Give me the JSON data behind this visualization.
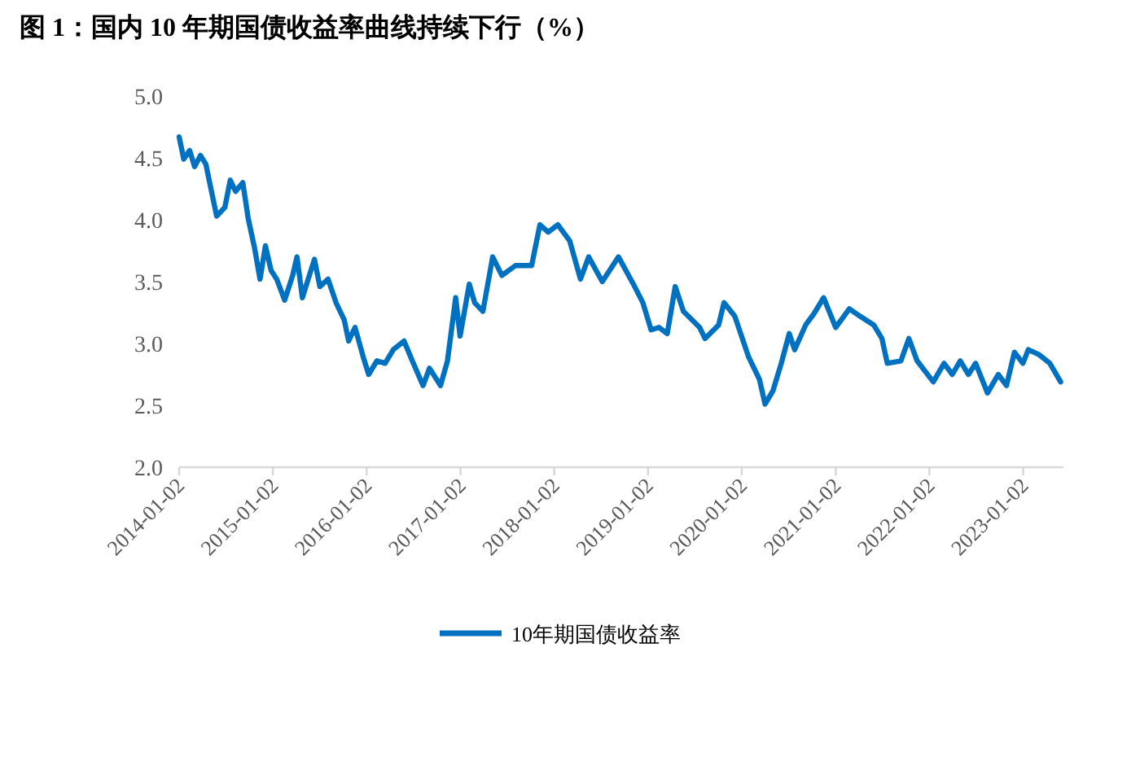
{
  "chart_data": {
    "type": "line",
    "title": "图 1：国内 10 年期国债收益率曲线持续下行（%）",
    "legend": "bottom",
    "grid": false,
    "marker": "none",
    "line_style": "solid",
    "xlim": [
      "2014-01-02",
      "2023-06-08"
    ],
    "xticks": [
      "2014-01-02",
      "2015-01-02",
      "2016-01-02",
      "2017-01-02",
      "2018-01-02",
      "2019-01-02",
      "2020-01-02",
      "2021-01-02",
      "2022-01-02",
      "2023-01-02"
    ],
    "ylim": [
      2.0,
      5.0
    ],
    "yticks": [
      {
        "value": 2.0,
        "label": "2.0"
      },
      {
        "value": 2.5,
        "label": "2.5"
      },
      {
        "value": 3.0,
        "label": "3.0"
      },
      {
        "value": 3.5,
        "label": "3.5"
      },
      {
        "value": 4.0,
        "label": "4.0"
      },
      {
        "value": 4.5,
        "label": "4.5"
      },
      {
        "value": 5.0,
        "label": "5.0"
      }
    ],
    "series": [
      {
        "name": "10年期国债收益率",
        "color": "#0070c0",
        "x": [
          "2014-01-02",
          "2014-01-20",
          "2014-02-12",
          "2014-03-03",
          "2014-03-26",
          "2014-04-16",
          "2014-05-08",
          "2014-05-28",
          "2014-06-29",
          "2014-07-20",
          "2014-08-10",
          "2014-09-07",
          "2014-09-28",
          "2014-10-23",
          "2014-11-13",
          "2014-12-04",
          "2014-12-26",
          "2015-01-17",
          "2015-02-17",
          "2015-03-20",
          "2015-04-06",
          "2015-04-27",
          "2015-05-27",
          "2015-06-13",
          "2015-07-04",
          "2015-08-05",
          "2015-09-05",
          "2015-10-07",
          "2015-10-24",
          "2015-11-18",
          "2015-12-20",
          "2016-01-10",
          "2016-02-11",
          "2016-03-14",
          "2016-04-15",
          "2016-05-27",
          "2016-06-28",
          "2016-08-09",
          "2016-09-03",
          "2016-10-16",
          "2016-11-12",
          "2016-12-14",
          "2016-12-31",
          "2017-02-05",
          "2017-02-26",
          "2017-03-30",
          "2017-05-07",
          "2017-06-12",
          "2017-08-04",
          "2017-10-06",
          "2017-11-07",
          "2017-12-09",
          "2018-01-16",
          "2018-03-03",
          "2018-04-14",
          "2018-05-16",
          "2018-07-08",
          "2018-09-09",
          "2018-11-11",
          "2018-12-13",
          "2019-01-14",
          "2019-02-14",
          "2019-03-18",
          "2019-04-18",
          "2019-05-20",
          "2019-07-22",
          "2019-08-12",
          "2019-10-04",
          "2019-10-25",
          "2019-12-06",
          "2020-01-29",
          "2020-03-11",
          "2020-04-02",
          "2020-05-03",
          "2020-06-04",
          "2020-07-05",
          "2020-07-26",
          "2020-09-07",
          "2020-10-09",
          "2020-11-16",
          "2021-01-02",
          "2021-02-24",
          "2021-04-07",
          "2021-05-30",
          "2021-07-01",
          "2021-07-22",
          "2021-09-13",
          "2021-10-14",
          "2021-11-15",
          "2022-01-17",
          "2022-02-28",
          "2022-04-01",
          "2022-05-02",
          "2022-06-03",
          "2022-07-01",
          "2022-08-16",
          "2022-09-27",
          "2022-10-29",
          "2022-11-29",
          "2023-01-01",
          "2023-01-22",
          "2023-03-05",
          "2023-04-16",
          "2023-05-28"
        ],
        "values": [
          4.67,
          4.49,
          4.56,
          4.43,
          4.52,
          4.45,
          4.23,
          4.03,
          4.1,
          4.32,
          4.23,
          4.3,
          4.01,
          3.77,
          3.52,
          3.79,
          3.59,
          3.52,
          3.35,
          3.55,
          3.7,
          3.37,
          3.57,
          3.68,
          3.46,
          3.52,
          3.33,
          3.19,
          3.02,
          3.13,
          2.89,
          2.75,
          2.86,
          2.84,
          2.95,
          3.02,
          2.86,
          2.66,
          2.8,
          2.66,
          2.86,
          3.37,
          3.06,
          3.48,
          3.33,
          3.26,
          3.7,
          3.55,
          3.63,
          3.63,
          3.96,
          3.9,
          3.96,
          3.83,
          3.52,
          3.7,
          3.5,
          3.7,
          3.46,
          3.33,
          3.11,
          3.13,
          3.08,
          3.46,
          3.26,
          3.13,
          3.04,
          3.15,
          3.33,
          3.22,
          2.89,
          2.71,
          2.51,
          2.62,
          2.84,
          3.08,
          2.95,
          3.15,
          3.24,
          3.37,
          3.13,
          3.28,
          3.22,
          3.15,
          3.04,
          2.84,
          2.86,
          3.04,
          2.86,
          2.69,
          2.84,
          2.75,
          2.86,
          2.75,
          2.84,
          2.6,
          2.75,
          2.66,
          2.93,
          2.84,
          2.95,
          2.91,
          2.84,
          2.69
        ]
      }
    ]
  }
}
